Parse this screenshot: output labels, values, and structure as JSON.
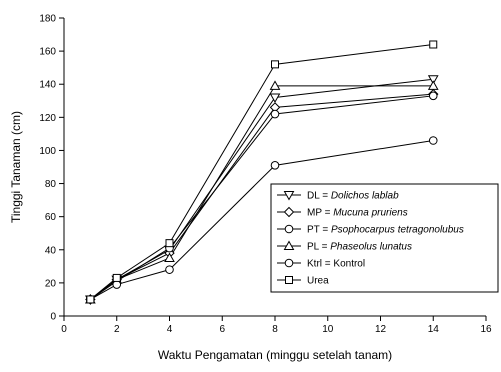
{
  "chart_data": {
    "type": "line",
    "xlabel": "Waktu Pengamatan (minggu setelah tanam)",
    "ylabel": "Tinggi Tanaman (cm)",
    "xlim": [
      0,
      16
    ],
    "ylim": [
      0,
      180
    ],
    "xticks": [
      0,
      2,
      4,
      6,
      8,
      10,
      12,
      14,
      16
    ],
    "yticks": [
      0,
      20,
      40,
      60,
      80,
      100,
      120,
      140,
      160,
      180
    ],
    "grid": false,
    "legend_position": "bottom-right",
    "x": [
      1,
      2,
      4,
      8,
      14
    ],
    "series": [
      {
        "name": "DL = Dolichos lablab",
        "code": "DL = ",
        "species": "Dolichos lablab",
        "marker": "triangle-down",
        "values": [
          10,
          22,
          40,
          132,
          143
        ]
      },
      {
        "name": "MP = Mucuna pruriens",
        "code": "MP = ",
        "species": "Mucuna pruriens",
        "marker": "diamond",
        "values": [
          10,
          22,
          38,
          126,
          134
        ]
      },
      {
        "name": "PT = Psophocarpus tetragonolubus",
        "code": "PT = ",
        "species": "Psophocarpus tetragonolubus",
        "marker": "circle",
        "values": [
          10,
          21,
          41,
          122,
          133
        ]
      },
      {
        "name": "PL = Phaseolus lunatus",
        "code": "PL = ",
        "species": "Phaseolus lunatus",
        "marker": "triangle-up",
        "values": [
          10,
          22,
          35,
          139,
          139
        ]
      },
      {
        "name": "Ktrl = Kontrol",
        "code": "Ktrl = Kontrol",
        "species": "",
        "marker": "circle",
        "values": [
          10,
          19,
          28,
          91,
          106
        ]
      },
      {
        "name": "Urea",
        "code": "Urea",
        "species": "",
        "marker": "square",
        "values": [
          10,
          23,
          44,
          152,
          164
        ]
      }
    ]
  }
}
